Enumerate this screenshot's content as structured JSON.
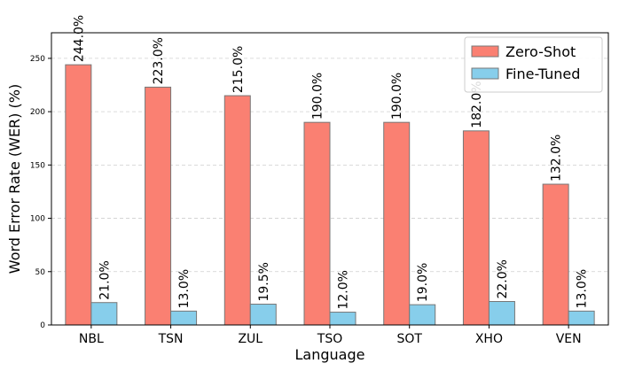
{
  "chart_data": {
    "type": "bar",
    "categories": [
      "NBL",
      "TSN",
      "ZUL",
      "TSO",
      "SOT",
      "XHO",
      "VEN"
    ],
    "series": [
      {
        "name": "Zero-Shot",
        "color": "#fa8072",
        "values": [
          244.0,
          223.0,
          215.0,
          190.0,
          190.0,
          182.0,
          132.0
        ],
        "labels": [
          "244.0%",
          "223.0%",
          "215.0%",
          "190.0%",
          "190.0%",
          "182.0%",
          "132.0%"
        ]
      },
      {
        "name": "Fine-Tuned",
        "color": "#87ceeb",
        "values": [
          21.0,
          13.0,
          19.5,
          12.0,
          19.0,
          22.0,
          13.0
        ],
        "labels": [
          "21.0%",
          "13.0%",
          "19.5%",
          "12.0%",
          "19.0%",
          "22.0%",
          "13.0%"
        ]
      }
    ],
    "xlabel": "Language",
    "ylabel": "Word Error Rate (WER) (%)",
    "ylim": [
      0,
      274
    ],
    "yticks": [
      "0",
      "50",
      "100",
      "150",
      "200",
      "250"
    ],
    "grid": "horizontal-dashed",
    "legend_position": "top-right"
  }
}
